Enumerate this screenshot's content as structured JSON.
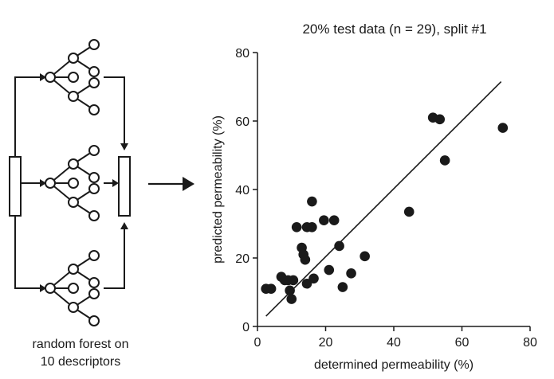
{
  "diagram": {
    "caption_line1": "random forest on",
    "caption_line2": "10 descriptors"
  },
  "chart_data": {
    "type": "scatter",
    "title": "20% test data (n = 29), split #1",
    "xlabel": "determined permeability (%)",
    "ylabel": "predicted permeability (%)",
    "xlim": [
      0,
      80
    ],
    "ylim": [
      0,
      80
    ],
    "xticks": [
      0,
      20,
      40,
      60,
      80
    ],
    "yticks": [
      0,
      20,
      40,
      60,
      80
    ],
    "grid": false,
    "marker_color": "#1a1a1a",
    "points": [
      [
        2.5,
        11
      ],
      [
        4,
        11
      ],
      [
        7,
        14.5
      ],
      [
        8,
        13.5
      ],
      [
        9,
        13.5
      ],
      [
        9.5,
        10.5
      ],
      [
        10,
        8
      ],
      [
        10.5,
        13.5
      ],
      [
        11.5,
        29
      ],
      [
        13,
        23
      ],
      [
        13.5,
        21
      ],
      [
        14,
        19.5
      ],
      [
        14.5,
        12.5
      ],
      [
        14.5,
        29
      ],
      [
        16,
        36.5
      ],
      [
        16,
        29
      ],
      [
        16.5,
        14
      ],
      [
        19.5,
        31
      ],
      [
        21,
        16.5
      ],
      [
        22.5,
        31
      ],
      [
        24,
        23.5
      ],
      [
        25,
        11.5
      ],
      [
        27.5,
        15.5
      ],
      [
        31.5,
        20.5
      ],
      [
        44.5,
        33.5
      ],
      [
        51.5,
        61
      ],
      [
        53.5,
        60.5
      ],
      [
        55,
        48.5
      ],
      [
        72,
        58
      ]
    ],
    "fit_line": [
      [
        2.5,
        3
      ],
      [
        71.5,
        71.5
      ]
    ]
  }
}
